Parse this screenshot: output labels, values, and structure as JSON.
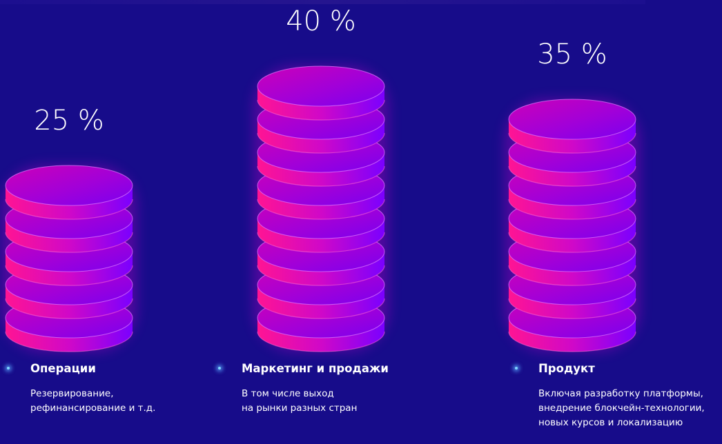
{
  "chart_data": {
    "type": "bar",
    "style": "stacked-coin-columns",
    "categories": [
      "Операции",
      "Маркетинг и продажи",
      "Продукт"
    ],
    "values": [
      25,
      40,
      35
    ],
    "unit": "%",
    "value_labels": [
      "25 %",
      "40 %",
      "35 %"
    ],
    "descriptions": [
      [
        "Резервирование,",
        "рефинансирование и т.д."
      ],
      [
        "В том числе выход",
        "на рынки разных стран"
      ],
      [
        "Включая разработку платформы,",
        "внедрение блокчейн-технологии,",
        "новых курсов и локализацию"
      ]
    ],
    "colors": {
      "background": "#170c8a",
      "coin_left": "#ff1493",
      "coin_right": "#7a00ff",
      "coin_top": "#b800c8",
      "legend_dot": "#7fd4ff"
    }
  }
}
